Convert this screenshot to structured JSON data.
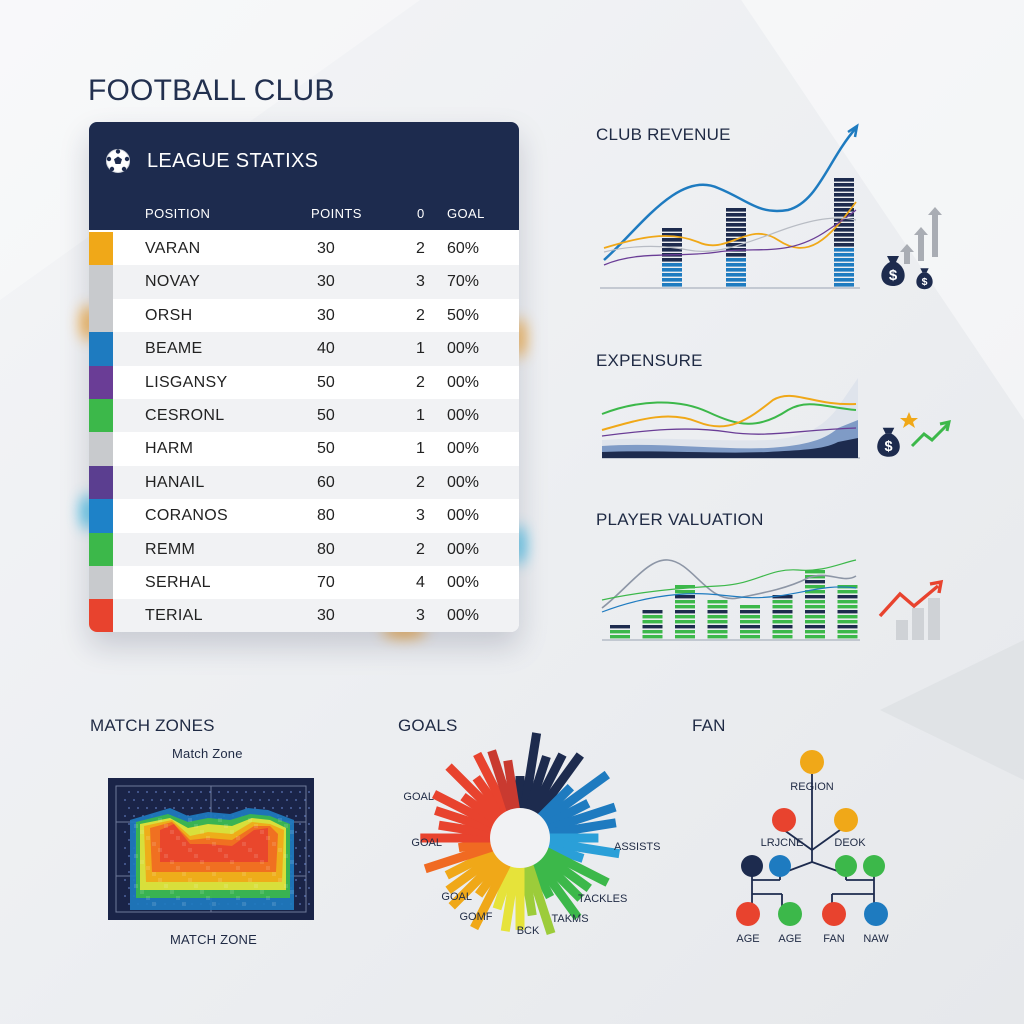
{
  "title": "FOOTBALL CLUB",
  "league": {
    "title": "LEAGUE STATIXS",
    "columns": [
      "POSITION",
      "POINTS",
      "0",
      "GOAL"
    ],
    "rows": [
      {
        "name": "VARAN",
        "points": "30",
        "x": "2",
        "goal": "60%",
        "color": "#f0a818"
      },
      {
        "name": "NOVAY",
        "points": "30",
        "x": "3",
        "goal": "70%",
        "color": "#c8cacd"
      },
      {
        "name": "ORSH",
        "points": "30",
        "x": "2",
        "goal": "50%",
        "color": "#c8cacd"
      },
      {
        "name": "BEAME",
        "points": "40",
        "x": "1",
        "goal": "00%",
        "color": "#1e7bc0"
      },
      {
        "name": "LISGANSY",
        "points": "50",
        "x": "2",
        "goal": "00%",
        "color": "#6a3d96"
      },
      {
        "name": "CESRONL",
        "points": "50",
        "x": "1",
        "goal": "00%",
        "color": "#3cb84a"
      },
      {
        "name": "HARM",
        "points": "50",
        "x": "1",
        "goal": "00%",
        "color": "#c8cacd"
      },
      {
        "name": "HANAIL",
        "points": "60",
        "x": "2",
        "goal": "00%",
        "color": "#5b3e90"
      },
      {
        "name": "CORANOS",
        "points": "80",
        "x": "3",
        "goal": "00%",
        "color": "#1e82c8"
      },
      {
        "name": "REMM",
        "points": "80",
        "x": "2",
        "goal": "00%",
        "color": "#3cb84a"
      },
      {
        "name": "SERHAL",
        "points": "70",
        "x": "4",
        "goal": "00%",
        "color": "#c8cacd"
      },
      {
        "name": "TERIAL",
        "points": "30",
        "x": "3",
        "goal": "00%",
        "color": "#e8432e"
      }
    ]
  },
  "chart_data": [
    {
      "type": "bar",
      "title": "CLUB REVENUE",
      "values": [
        55,
        75,
        100
      ],
      "lines": 4
    },
    {
      "type": "area",
      "title": "EXPENSURE",
      "lines": 3
    },
    {
      "type": "bar",
      "title": "PLAYER VALUATION",
      "values": [
        16,
        28,
        50,
        38,
        36,
        42,
        65,
        50
      ]
    },
    {
      "type": "heatmap",
      "title": "MATCH ZONES",
      "subtitle": "Match Zone",
      "caption": "MATCH ZONE"
    },
    {
      "type": "bar",
      "title": "GOALS",
      "labels": [
        "GOAL",
        "GOAL",
        "GOAL",
        "GOMF",
        "BCK",
        "TAKMS",
        "TACKLES",
        "ASSISTS"
      ]
    },
    {
      "type": "table",
      "title": "FAN",
      "nodes": {
        "root": "REGION",
        "mid": [
          "LRJCNE",
          "DEOK"
        ],
        "leaves": [
          "AGE",
          "AGE",
          "FAN",
          "NAW"
        ]
      }
    }
  ],
  "colors": {
    "navy": "#1d2b4e",
    "blue": "#1e7bc0",
    "green": "#3cb84a",
    "orange": "#f0a818",
    "red": "#e8432e"
  },
  "icons": [
    "soccer-ball-icon",
    "money-bag-icon",
    "trend-arrow-icon",
    "star-icon"
  ]
}
